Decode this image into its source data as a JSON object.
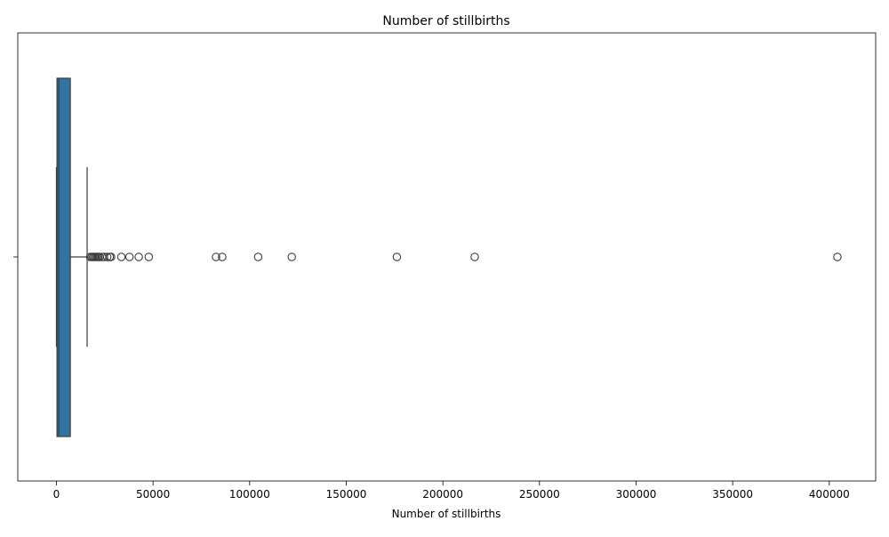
{
  "chart_data": {
    "type": "box",
    "title": "Number of stillbirths",
    "xlabel": "Number of stillbirths",
    "ylabel": "",
    "xlim": [
      -20000,
      424000
    ],
    "xticks": [
      0,
      50000,
      100000,
      150000,
      200000,
      250000,
      300000,
      350000,
      400000
    ],
    "xtick_labels": [
      "0",
      "50000",
      "100000",
      "150000",
      "200000",
      "250000",
      "300000",
      "350000",
      "400000"
    ],
    "box": {
      "whisker_low": 0,
      "q1": 300,
      "median": 1200,
      "q3": 7200,
      "whisker_high": 15900
    },
    "outliers": [
      17500,
      18300,
      19000,
      19600,
      20300,
      21000,
      21600,
      22300,
      23600,
      24600,
      26300,
      27600,
      28300,
      33600,
      37800,
      42600,
      47800,
      82600,
      85800,
      104400,
      121800,
      176200,
      216500,
      404200
    ],
    "box_color": "#3274a1",
    "line_color": "#3d3d3d",
    "grid": false
  }
}
